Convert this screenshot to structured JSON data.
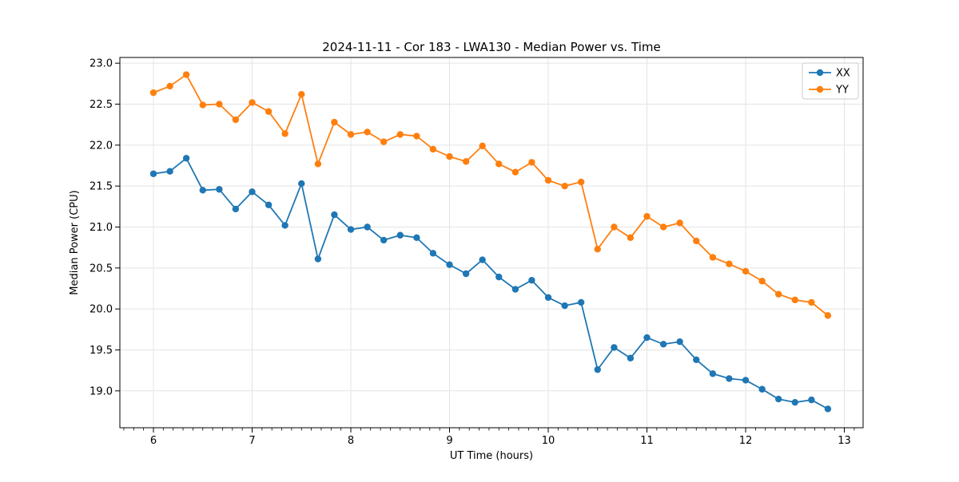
{
  "chart_data": {
    "type": "line",
    "title": "2024-11-11 - Cor 183 - LWA130 - Median Power vs. Time",
    "xlabel": "UT Time (hours)",
    "ylabel": "Median Power (CPU)",
    "xlim": [
      5.66,
      13.19
    ],
    "ylim": [
      18.55,
      23.07
    ],
    "xticks": [
      6,
      7,
      8,
      9,
      10,
      11,
      12,
      13
    ],
    "yticks": [
      19.0,
      19.5,
      20.0,
      20.5,
      21.0,
      21.5,
      22.0,
      22.5,
      23.0
    ],
    "ytick_labels": [
      "19.0",
      "19.5",
      "20.0",
      "20.5",
      "21.0",
      "21.5",
      "22.0",
      "22.5",
      "23.0"
    ],
    "minor_xtick_step": 0.1,
    "grid": true,
    "legend_position": "upper right",
    "x": [
      6.0,
      6.167,
      6.333,
      6.5,
      6.667,
      6.833,
      7.0,
      7.167,
      7.333,
      7.5,
      7.667,
      7.833,
      8.0,
      8.167,
      8.333,
      8.5,
      8.667,
      8.833,
      9.0,
      9.167,
      9.333,
      9.5,
      9.667,
      9.833,
      10.0,
      10.167,
      10.333,
      10.5,
      10.667,
      10.833,
      11.0,
      11.167,
      11.333,
      11.5,
      11.667,
      11.833,
      12.0,
      12.167,
      12.333,
      12.5,
      12.667,
      12.833
    ],
    "series": [
      {
        "name": "XX",
        "color": "#1f77b4",
        "values": [
          21.65,
          21.68,
          21.84,
          21.45,
          21.46,
          21.22,
          21.43,
          21.27,
          21.02,
          21.53,
          20.61,
          21.15,
          20.97,
          21.0,
          20.84,
          20.9,
          20.87,
          20.68,
          20.54,
          20.43,
          20.6,
          20.39,
          20.24,
          20.35,
          20.14,
          20.04,
          20.08,
          19.26,
          19.53,
          19.4,
          19.65,
          19.57,
          19.6,
          19.38,
          19.21,
          19.15,
          19.13,
          19.02,
          18.9,
          18.86,
          18.89,
          18.78
        ]
      },
      {
        "name": "YY",
        "color": "#ff7f0e",
        "values": [
          22.64,
          22.72,
          22.86,
          22.49,
          22.5,
          22.31,
          22.52,
          22.41,
          22.14,
          22.62,
          21.77,
          22.28,
          22.13,
          22.16,
          22.04,
          22.13,
          22.11,
          21.95,
          21.86,
          21.8,
          21.99,
          21.77,
          21.67,
          21.79,
          21.57,
          21.5,
          21.55,
          20.73,
          21.0,
          20.87,
          21.13,
          21.0,
          21.05,
          20.83,
          20.63,
          20.55,
          20.46,
          20.34,
          20.18,
          20.11,
          20.08,
          19.92
        ]
      }
    ],
    "colors": {
      "grid": "#e4e4e4",
      "spine": "#000000",
      "background": "#ffffff"
    }
  }
}
